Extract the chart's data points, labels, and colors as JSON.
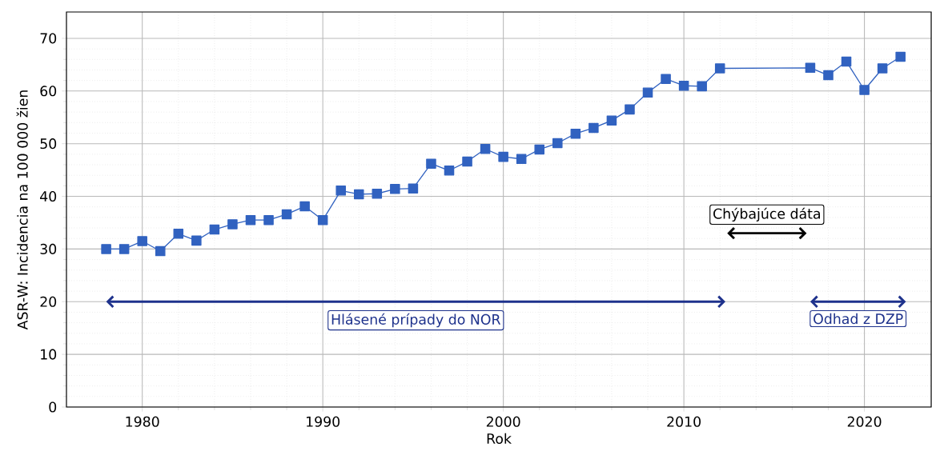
{
  "chart_data": {
    "type": "line",
    "xlabel": "Rok",
    "ylabel": "ASR-W: Incidencia na 100 000 žien",
    "x": [
      1978,
      1979,
      1980,
      1981,
      1982,
      1983,
      1984,
      1985,
      1986,
      1987,
      1988,
      1989,
      1990,
      1991,
      1992,
      1993,
      1994,
      1995,
      1996,
      1997,
      1998,
      1999,
      2000,
      2001,
      2002,
      2003,
      2004,
      2005,
      2006,
      2007,
      2008,
      2009,
      2010,
      2011,
      2012,
      2017,
      2018,
      2019,
      2020,
      2021,
      2022
    ],
    "series": [
      {
        "color": "#3162c0",
        "values": [
          30.0,
          30.0,
          31.5,
          29.6,
          32.9,
          31.6,
          33.7,
          34.7,
          35.5,
          35.5,
          36.6,
          38.1,
          35.5,
          41.1,
          40.4,
          40.5,
          41.4,
          41.5,
          46.2,
          44.9,
          46.6,
          49.0,
          47.5,
          47.1,
          48.9,
          50.1,
          51.9,
          53.0,
          54.4,
          56.5,
          59.7,
          62.3,
          61.0,
          60.9,
          64.3,
          64.4,
          63.0,
          65.6,
          60.2,
          64.3,
          66.5
        ]
      }
    ],
    "xlim": [
      1975.8,
      2023.7
    ],
    "ylim": [
      0,
      75
    ],
    "xticks": [
      1980,
      1990,
      2000,
      2010,
      2020
    ],
    "yticks": [
      0,
      10,
      20,
      30,
      40,
      50,
      60,
      70
    ],
    "grid": true,
    "marker": "square",
    "line_style": "solid",
    "annotations": [
      "Hlásené prípady do NOR",
      "Odhad z DZP",
      "Chýbajúce dáta"
    ]
  }
}
